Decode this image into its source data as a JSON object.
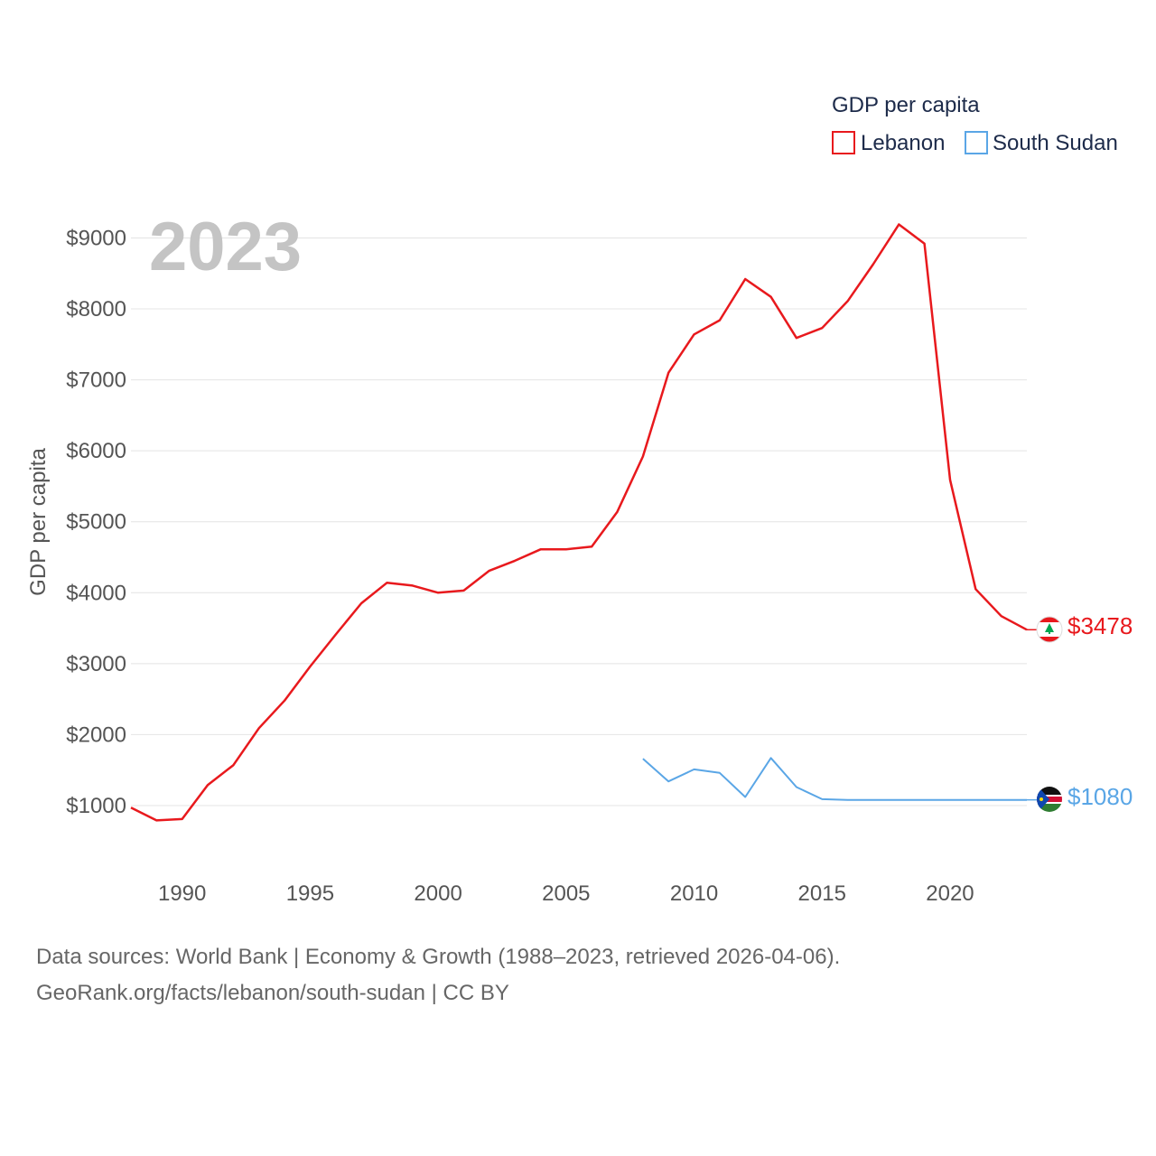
{
  "legend": {
    "title": "GDP per capita",
    "items": [
      "Lebanon",
      "South Sudan"
    ]
  },
  "year_label": "2023",
  "end_labels": {
    "lebanon": "$3478",
    "south_sudan": "$1080"
  },
  "colors": {
    "lebanon": "#e8191d",
    "south_sudan": "#5aa6e6",
    "grid": "#e4e4e4",
    "text": "#555555"
  },
  "flag_icons": [
    "lebanon-flag-icon",
    "south-sudan-flag-icon"
  ],
  "source": {
    "line1": "Data sources: World Bank | Economy & Growth (1988–2023, retrieved 2026-04-06).",
    "line2": "GeoRank.org/facts/lebanon/south-sudan | CC BY"
  },
  "chart_data": {
    "type": "line",
    "title": "GDP per capita",
    "xlabel": "",
    "ylabel": "GDP per capita",
    "xlim": [
      1988,
      2023
    ],
    "ylim": [
      0,
      9500
    ],
    "grid": true,
    "legend_position": "top-right",
    "x_ticks": [
      1990,
      1995,
      2000,
      2005,
      2010,
      2015,
      2020
    ],
    "x_tick_labels": [
      "1990",
      "1995",
      "2000",
      "2005",
      "2010",
      "2015",
      "2020"
    ],
    "y_ticks": [
      1000,
      2000,
      3000,
      4000,
      5000,
      6000,
      7000,
      8000,
      9000
    ],
    "y_tick_labels": [
      "$1000",
      "$2000",
      "$3000",
      "$4000",
      "$5000",
      "$6000",
      "$7000",
      "$8000",
      "$9000"
    ],
    "series": [
      {
        "name": "Lebanon",
        "x": [
          1988,
          1989,
          1990,
          1991,
          1992,
          1993,
          1994,
          1995,
          1996,
          1997,
          1998,
          1999,
          2000,
          2001,
          2002,
          2003,
          2004,
          2005,
          2006,
          2007,
          2008,
          2009,
          2010,
          2011,
          2012,
          2013,
          2014,
          2015,
          2016,
          2017,
          2018,
          2019,
          2020,
          2021,
          2022,
          2023
        ],
        "values": [
          970,
          790,
          810,
          1290,
          1570,
          2090,
          2480,
          2960,
          3410,
          3850,
          4140,
          4100,
          4000,
          4030,
          4310,
          4450,
          4610,
          4610,
          4650,
          5140,
          5920,
          7100,
          7640,
          7840,
          8420,
          8170,
          7590,
          7730,
          8110,
          8630,
          9190,
          8920,
          5590,
          4050,
          3670,
          3478
        ]
      },
      {
        "name": "South Sudan",
        "x": [
          2008,
          2009,
          2010,
          2011,
          2012,
          2013,
          2014,
          2015,
          2016,
          2017,
          2018,
          2019,
          2020,
          2021,
          2022,
          2023
        ],
        "values": [
          1660,
          1340,
          1510,
          1460,
          1120,
          1670,
          1260,
          1090,
          1080,
          1080,
          1080,
          1080,
          1080,
          1080,
          1080,
          1080
        ]
      }
    ]
  }
}
